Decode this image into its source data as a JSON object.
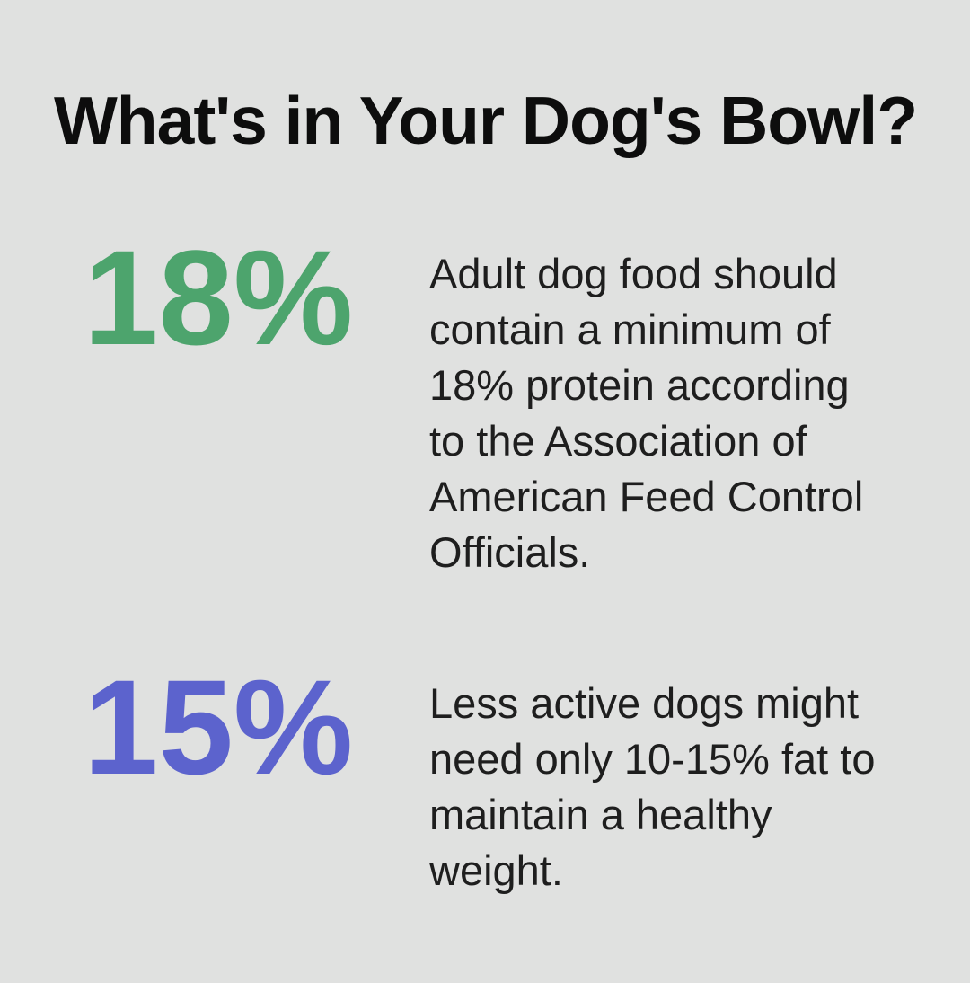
{
  "page": {
    "background_color": "#e0e1e0",
    "title": "What's in Your Dog's Bowl?",
    "title_color": "#0d0d0d",
    "body_text_color": "#1e1e1e"
  },
  "stats": [
    {
      "value": "18%",
      "color": "#4da46d",
      "description": "Adult dog food should\ncontain a minimum of\n18% protein according\nto the Association of\nAmerican Feed Control\nOfficials."
    },
    {
      "value": "15%",
      "color": "#5c63cd",
      "description": "Less active dogs might\nneed only 10-15% fat to\nmaintain a healthy\nweight."
    }
  ],
  "chart_data": {
    "type": "table",
    "title": "What's in Your Dog's Bowl?",
    "stats": [
      {
        "value": 18,
        "unit": "%",
        "label": "Adult dog food should contain a minimum of 18% protein according to the Association of American Feed Control Officials."
      },
      {
        "value": 15,
        "unit": "%",
        "label": "Less active dogs might need only 10-15% fat to maintain a healthy weight."
      }
    ]
  }
}
